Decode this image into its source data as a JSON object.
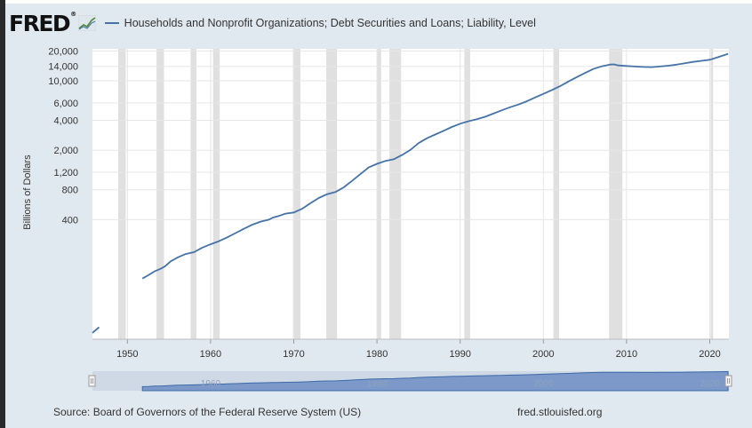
{
  "logo": {
    "text": "FRED",
    "registered": "®"
  },
  "footer": {
    "source": "Source: Board of Governors of the Federal Reserve System (US)",
    "url": "fred.stlouisfed.org"
  },
  "colors": {
    "line": "#4572a7",
    "recession": "#e0e0e0",
    "background": "#e1e9f0",
    "plot": "#ffffff"
  },
  "chart_data": {
    "type": "line",
    "title": "",
    "xlabel": "",
    "ylabel": "Billions of Dollars",
    "yscale": "log",
    "series": [
      {
        "name": "Households and Nonprofit Organizations; Debt Securities and Loans; Liability, Level",
        "segments": [
          [
            [
              1945.8,
              29
            ],
            [
              1946.6,
              33
            ]
          ],
          [
            [
              1951.8,
              102
            ],
            [
              1952.5,
              110
            ],
            [
              1953.3,
              121
            ],
            [
              1954.0,
              128
            ],
            [
              1954.5,
              135
            ],
            [
              1955.2,
              152
            ],
            [
              1956.0,
              166
            ],
            [
              1957.0,
              180
            ],
            [
              1958.0,
              188
            ],
            [
              1959.0,
              209
            ],
            [
              1960.0,
              226
            ],
            [
              1961.0,
              243
            ],
            [
              1962.0,
              265
            ],
            [
              1963.0,
              293
            ],
            [
              1964.0,
              323
            ],
            [
              1965.0,
              355
            ],
            [
              1966.0,
              382
            ],
            [
              1967.0,
              400
            ],
            [
              1967.5,
              420
            ],
            [
              1968.0,
              430
            ],
            [
              1969.0,
              460
            ],
            [
              1970.0,
              472
            ],
            [
              1971.0,
              515
            ],
            [
              1972.0,
              585
            ],
            [
              1973.0,
              660
            ],
            [
              1974.0,
              722
            ],
            [
              1975.0,
              758
            ],
            [
              1976.0,
              845
            ],
            [
              1977.0,
              982
            ],
            [
              1978.0,
              1150
            ],
            [
              1979.0,
              1340
            ],
            [
              1980.0,
              1460
            ],
            [
              1981.0,
              1560
            ],
            [
              1982.0,
              1620
            ],
            [
              1983.0,
              1790
            ],
            [
              1984.0,
              2010
            ],
            [
              1985.0,
              2360
            ],
            [
              1986.0,
              2640
            ],
            [
              1987.0,
              2880
            ],
            [
              1988.0,
              3140
            ],
            [
              1989.0,
              3430
            ],
            [
              1990.0,
              3700
            ],
            [
              1991.0,
              3920
            ],
            [
              1992.0,
              4100
            ],
            [
              1993.0,
              4350
            ],
            [
              1994.0,
              4680
            ],
            [
              1995.0,
              5050
            ],
            [
              1996.0,
              5420
            ],
            [
              1997.0,
              5780
            ],
            [
              1998.0,
              6220
            ],
            [
              1999.0,
              6790
            ],
            [
              2000.0,
              7400
            ],
            [
              2001.0,
              8050
            ],
            [
              2002.0,
              8820
            ],
            [
              2003.0,
              9850
            ],
            [
              2004.0,
              10880
            ],
            [
              2005.0,
              12000
            ],
            [
              2006.0,
              13150
            ],
            [
              2007.0,
              14000
            ],
            [
              2008.0,
              14600
            ],
            [
              2008.5,
              14650
            ],
            [
              2009.0,
              14300
            ],
            [
              2010.0,
              14100
            ],
            [
              2011.0,
              13950
            ],
            [
              2012.0,
              13800
            ],
            [
              2013.0,
              13750
            ],
            [
              2014.0,
              13950
            ],
            [
              2015.0,
              14200
            ],
            [
              2016.0,
              14550
            ],
            [
              2017.0,
              15050
            ],
            [
              2018.0,
              15500
            ],
            [
              2019.0,
              15900
            ],
            [
              2020.0,
              16300
            ],
            [
              2021.0,
              17300
            ],
            [
              2022.2,
              18700
            ]
          ]
        ]
      }
    ],
    "recessions": [
      [
        1948.9,
        1949.8
      ],
      [
        1953.5,
        1954.4
      ],
      [
        1957.6,
        1958.3
      ],
      [
        1960.3,
        1961.1
      ],
      [
        1969.9,
        1970.8
      ],
      [
        1973.9,
        1975.2
      ],
      [
        1980.0,
        1980.5
      ],
      [
        1981.5,
        1982.9
      ],
      [
        1990.5,
        1991.2
      ],
      [
        2001.2,
        2001.9
      ],
      [
        2007.9,
        2009.5
      ],
      [
        2020.1,
        2020.4
      ]
    ],
    "xlim": [
      1945.8,
      2022.3
    ],
    "ylim": [
      25,
      21000
    ],
    "x_ticks": [
      "1950",
      "1960",
      "1970",
      "1980",
      "1990",
      "2000",
      "2010",
      "2020"
    ],
    "y_ticks": [
      "20,000",
      "14,000",
      "10,000",
      "6,000",
      "4,000",
      "2,000",
      "1,200",
      "800",
      "400"
    ],
    "navigator_ticks": [
      "1960",
      "1980",
      "2000",
      "2020"
    ],
    "grid": true,
    "legend_position": "top"
  }
}
